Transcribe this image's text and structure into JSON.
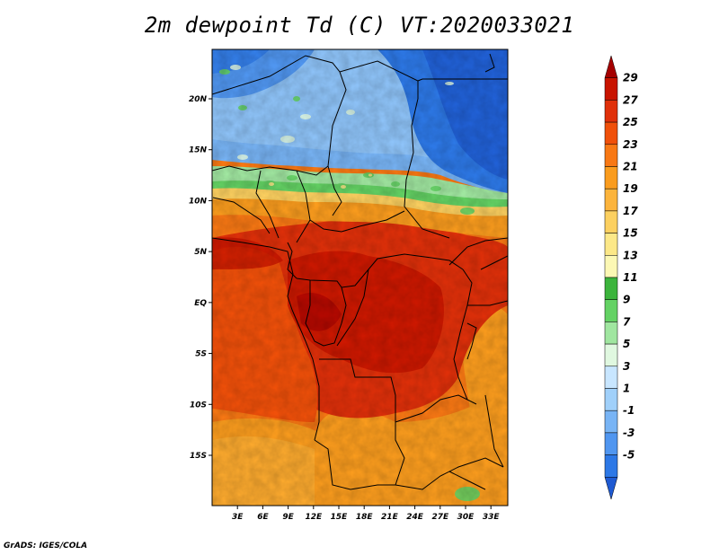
{
  "title": "2m dewpoint Td (C) VT:2020033021",
  "credit": "GrADS: IGES/COLA",
  "map": {
    "lat_labels": [
      {
        "label": "20N",
        "lat": 20
      },
      {
        "label": "15N",
        "lat": 15
      },
      {
        "label": "10N",
        "lat": 10
      },
      {
        "label": "5N",
        "lat": 5
      },
      {
        "label": "EQ",
        "lat": 0
      },
      {
        "label": "5S",
        "lat": -5
      },
      {
        "label": "10S",
        "lat": -10
      },
      {
        "label": "15S",
        "lat": -15
      }
    ],
    "lon_labels": [
      {
        "label": "3E",
        "lon": 3
      },
      {
        "label": "6E",
        "lon": 6
      },
      {
        "label": "9E",
        "lon": 9
      },
      {
        "label": "12E",
        "lon": 12
      },
      {
        "label": "15E",
        "lon": 15
      },
      {
        "label": "18E",
        "lon": 18
      },
      {
        "label": "21E",
        "lon": 21
      },
      {
        "label": "24E",
        "lon": 24
      },
      {
        "label": "27E",
        "lon": 27
      },
      {
        "label": "30E",
        "lon": 30
      },
      {
        "label": "33E",
        "lon": 33
      }
    ],
    "lon_range": [
      0,
      35
    ],
    "lat_range": [
      -20,
      25
    ]
  },
  "colorbar": {
    "labels": [
      "29",
      "27",
      "25",
      "23",
      "21",
      "19",
      "17",
      "15",
      "13",
      "11",
      "9",
      "7",
      "5",
      "3",
      "1",
      "-1",
      "-3",
      "-5"
    ],
    "colors": [
      "#a50000",
      "#c81400",
      "#e0300a",
      "#f0500a",
      "#f87814",
      "#fa9c1e",
      "#fcb43c",
      "#fcd060",
      "#fce888",
      "#fcf8b4",
      "#3cb43c",
      "#64d264",
      "#a0e6a0",
      "#e0f8e0",
      "#c8e6ff",
      "#a0d0fa",
      "#78b4f5",
      "#5096f0",
      "#2d78e6",
      "#1e5ad2"
    ]
  }
}
